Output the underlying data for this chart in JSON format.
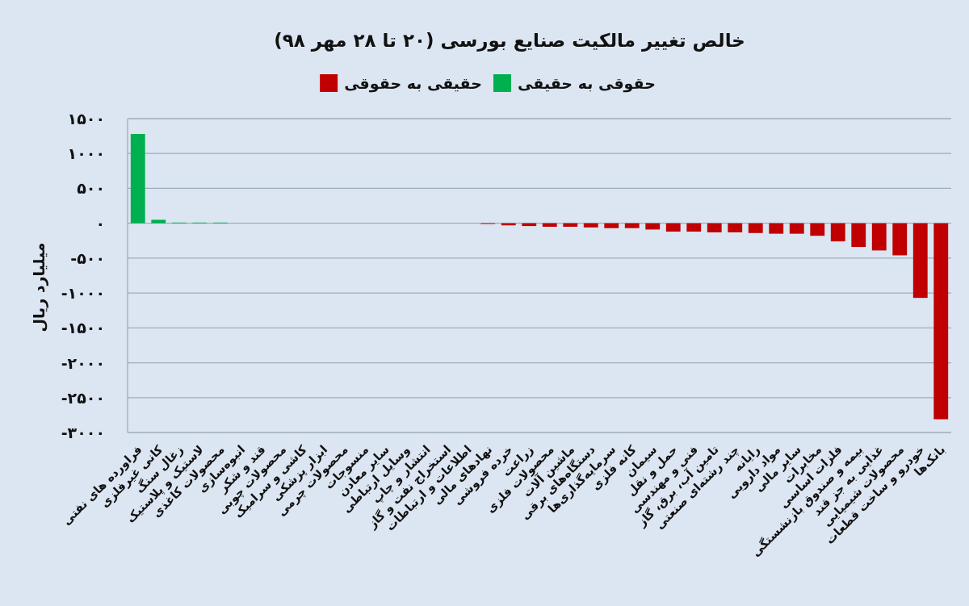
{
  "chart_data": {
    "type": "bar",
    "title": "خالص تغییر مالکیت صنایع بورسی (۲۰ تا ۲۸ مهر ۹۸)",
    "ylabel": "میلیارد ریال",
    "categories": [
      "فراورده های نفتی",
      "کانی غیرفلزی",
      "زغال سنگ",
      "لاستیک و پلاستیک",
      "محصولات کاغذی",
      "انبوه‌سازی",
      "قند و شکر",
      "محصولات چوبی",
      "کاشی و سرامیک",
      "ابزار پزشکی",
      "محصولات چرمی",
      "منسوجات",
      "سایر معادن",
      "وسایل ارتباطی",
      "انتشار و چاپ",
      "استخراج نفت و گاز",
      "اطلاعات و ارتباطات",
      "نهادهای مالی",
      "خرده فروشی",
      "زراعت",
      "محصولات فلزی",
      "ماشین آلات",
      "دستگاه‌های برقی",
      "سرمایه‌گذاری‌ها",
      "کانه فلزی",
      "سیمان",
      "حمل و نقل",
      "فنی و مهندسی",
      "تامین آب، برق، گاز",
      "چند رشته‌ای صنعتی",
      "رایانه",
      "مواد دارویی",
      "سایر مالی",
      "مخابرات",
      "فلزات اساسی",
      "بیمه و صندوق بازنشستگی",
      "غذایی به جز قند",
      "محصولات شیمیایی",
      "خودرو و ساخت قطعات",
      "بانک‌ها"
    ],
    "stacked": true,
    "series": [
      {
        "name": "حقوقی به حقیقی",
        "color": "#00b050",
        "values": [
          1280,
          50,
          10,
          10,
          10,
          null,
          null,
          null,
          null,
          null,
          null,
          null,
          null,
          null,
          null,
          null,
          null,
          null,
          null,
          null,
          null,
          null,
          null,
          null,
          null,
          null,
          null,
          null,
          null,
          null,
          null,
          null,
          null,
          null,
          null,
          null,
          null,
          null,
          null,
          null
        ]
      },
      {
        "name": "حقیقی به حقوقی",
        "color": "#c00000",
        "values": [
          null,
          null,
          null,
          null,
          null,
          null,
          null,
          null,
          null,
          null,
          null,
          null,
          null,
          null,
          null,
          null,
          null,
          -10,
          -30,
          -40,
          -50,
          -50,
          -60,
          -70,
          -70,
          -90,
          -120,
          -120,
          -130,
          -130,
          -140,
          -150,
          -150,
          -180,
          -260,
          -340,
          -390,
          -460,
          -1070,
          -2810
        ]
      }
    ],
    "ylim": [
      -3000,
      1500
    ],
    "yticks": [
      {
        "value": 1500,
        "label": "۱۵۰۰"
      },
      {
        "value": 1000,
        "label": "۱۰۰۰"
      },
      {
        "value": 500,
        "label": "۵۰۰"
      },
      {
        "value": 0,
        "label": "۰"
      },
      {
        "value": -500,
        "label": "-۵۰۰"
      },
      {
        "value": -1000,
        "label": "-۱۰۰۰"
      },
      {
        "value": -1500,
        "label": "-۱۵۰۰"
      },
      {
        "value": -2000,
        "label": "-۲۰۰۰"
      },
      {
        "value": -2500,
        "label": "-۲۵۰۰"
      },
      {
        "value": -3000,
        "label": "-۳۰۰۰"
      }
    ],
    "grid": "y",
    "legend": "top"
  }
}
